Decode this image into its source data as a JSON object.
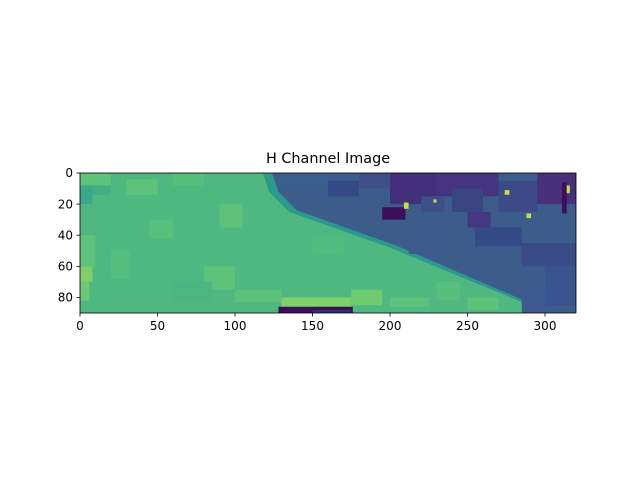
{
  "chart_data": {
    "type": "heatmap",
    "title": "H Channel Image",
    "xlabel": "",
    "ylabel": "",
    "xlim": [
      0,
      320
    ],
    "ylim": [
      90,
      0
    ],
    "x_ticks": [
      0,
      50,
      100,
      150,
      200,
      250,
      300
    ],
    "y_ticks": [
      0,
      20,
      40,
      60,
      80
    ],
    "grid": false,
    "legend": "none",
    "colormap": "viridis",
    "image_width": 320,
    "image_height": 90,
    "colors": {
      "green_region": "#4fb880",
      "green_light": "#5ec27a",
      "green_pale": "#7ed06a",
      "teal_transition": "#2a9a8c",
      "blue_region": "#3c5c8c",
      "blue_dark": "#354a87",
      "purple_region": "#42307a",
      "dark_purple": "#3b0f5a",
      "yellow_spot": "#c8e040"
    },
    "regions": [
      {
        "name": "green",
        "polygon": [
          [
            0,
            0
          ],
          [
            118,
            0
          ],
          [
            122,
            12
          ],
          [
            135,
            25
          ],
          [
            200,
            48
          ],
          [
            290,
            85
          ],
          [
            298,
            90
          ],
          [
            0,
            90
          ]
        ]
      },
      {
        "name": "blue",
        "polygon": [
          [
            118,
            0
          ],
          [
            320,
            0
          ],
          [
            320,
            90
          ],
          [
            298,
            90
          ],
          [
            290,
            85
          ],
          [
            200,
            48
          ],
          [
            135,
            25
          ],
          [
            122,
            12
          ]
        ]
      }
    ]
  }
}
